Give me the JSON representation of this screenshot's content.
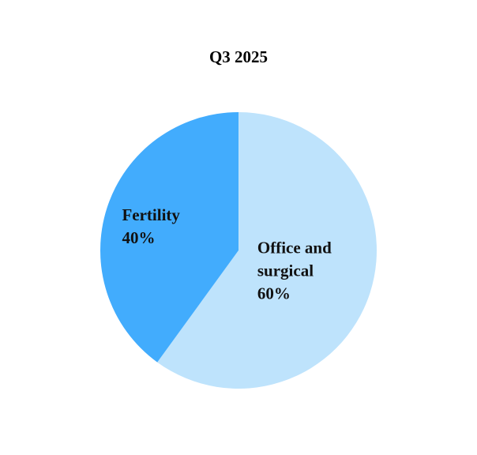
{
  "chart_data": {
    "type": "pie",
    "title": "Q3 2025",
    "categories": [
      "Office and surgical",
      "Fertility"
    ],
    "values": [
      60,
      40
    ],
    "value_labels": [
      "60%",
      "40%"
    ],
    "colors": [
      "#bee3fc",
      "#42acfd"
    ]
  }
}
